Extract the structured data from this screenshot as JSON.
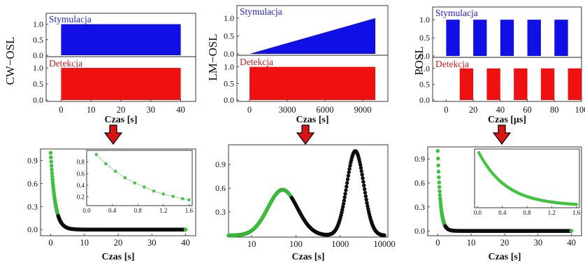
{
  "colors": {
    "stim": "#1010e6",
    "det": "#ef1010",
    "arrow": "#d81414",
    "green": "#3ec43e",
    "black": "#111111",
    "stim_label": "#2222c8",
    "det_label": "#cc2020"
  },
  "chart_data": [
    {
      "type": "bar",
      "method": "CW−OSL",
      "stim_label": "Stymulacja",
      "det_label": "Detekcja",
      "xlabel": "Czas [s]",
      "xlim": [
        -5,
        45
      ],
      "xticks": [
        "0",
        "10",
        "20",
        "30",
        "40"
      ],
      "xtick_values": [
        0,
        10,
        20,
        30,
        40
      ],
      "yticks": [
        "0.0",
        "0.5",
        "1.0"
      ],
      "ylim": [
        0,
        1.35
      ],
      "stimulation": [
        {
          "start": 0,
          "end": 40,
          "value": 1.0
        }
      ],
      "detection": [
        {
          "start": 0,
          "end": 40,
          "value": 1.0
        }
      ]
    },
    {
      "type": "area",
      "method": "LM−OSL",
      "stim_label": "Stymulacja",
      "det_label": "Detekcja",
      "xlabel": "Czas [s]",
      "xlim": [
        -1000,
        11000
      ],
      "xticks": [
        "0",
        "3000",
        "6000",
        "9000"
      ],
      "xtick_values": [
        0,
        3000,
        6000,
        9000
      ],
      "yticks": [
        "0.0",
        "0.5",
        "1.0"
      ],
      "ylim": [
        0,
        1.35
      ],
      "stimulation": [
        {
          "start": 0,
          "end": 10000,
          "value_start": 0.0,
          "value_end": 1.0
        }
      ],
      "detection": [
        {
          "start": 0,
          "end": 10000,
          "value": 1.0
        }
      ]
    },
    {
      "type": "bar",
      "method": "POSL",
      "stim_label": "Stymulacja",
      "det_label": "Detekcja",
      "xlabel": "Czas [μs]",
      "xlim": [
        -10,
        100
      ],
      "xticks": [
        "0",
        "20",
        "40",
        "60",
        "80",
        "100"
      ],
      "xtick_values": [
        0,
        20,
        40,
        60,
        80,
        100
      ],
      "yticks": [
        "0.0",
        "0.5",
        "1.0"
      ],
      "ylim": [
        0,
        1.35
      ],
      "stimulation": [
        {
          "start": 0,
          "end": 10,
          "value": 1.0
        },
        {
          "start": 20,
          "end": 30,
          "value": 1.0
        },
        {
          "start": 40,
          "end": 50,
          "value": 1.0
        },
        {
          "start": 60,
          "end": 70,
          "value": 1.0
        },
        {
          "start": 80,
          "end": 90,
          "value": 1.0
        }
      ],
      "detection": [
        {
          "start": 10,
          "end": 20,
          "value": 1.0
        },
        {
          "start": 30,
          "end": 40,
          "value": 1.0
        },
        {
          "start": 50,
          "end": 60,
          "value": 1.0
        },
        {
          "start": 70,
          "end": 80,
          "value": 1.0
        },
        {
          "start": 90,
          "end": 100,
          "value": 1.0
        }
      ]
    },
    {
      "type": "scatter",
      "method": "CW−OSL",
      "xlabel": "Czas [s]",
      "xlim": [
        -3,
        43
      ],
      "ylim": [
        -0.08,
        1.05
      ],
      "xticks": [
        "0",
        "10",
        "20",
        "30",
        "40"
      ],
      "xtick_values": [
        0,
        10,
        20,
        30,
        40
      ],
      "yticks": [
        "0.0",
        "0.3",
        "0.6",
        "0.9"
      ],
      "ytick_values": [
        0,
        0.3,
        0.6,
        0.9
      ],
      "decay_constant": 1.3,
      "x_range": [
        0,
        40
      ],
      "inset": {
        "xlim": [
          0,
          1.65
        ],
        "ylim": [
          0.05,
          1.0
        ],
        "xticks": [
          "0.0",
          "0.4",
          "0.8",
          "1.2",
          "1.6"
        ],
        "xtick_values": [
          0,
          0.4,
          0.8,
          1.2,
          1.6
        ],
        "yticks": [
          "0.2",
          "0.4",
          "0.6",
          "0.8"
        ],
        "ytick_values": [
          0.2,
          0.4,
          0.6,
          0.8
        ],
        "x": [
          0.15,
          0.3,
          0.45,
          0.6,
          0.75,
          0.9,
          1.05,
          1.2,
          1.35,
          1.5,
          1.6
        ],
        "y": [
          0.93,
          0.77,
          0.64,
          0.53,
          0.44,
          0.37,
          0.3,
          0.25,
          0.21,
          0.17,
          0.15
        ]
      }
    },
    {
      "type": "scatter",
      "method": "LM−OSL",
      "xlabel": "Czas [s]",
      "xscale": "log",
      "xlim": [
        3,
        12000
      ],
      "ylim": [
        -0.02,
        1.15
      ],
      "xticks": [
        "10",
        "100",
        "1000",
        "10000"
      ],
      "xtick_values": [
        10,
        100,
        1000,
        10000
      ],
      "yticks": [
        "0.3",
        "0.6",
        "0.9"
      ],
      "ytick_values": [
        0.3,
        0.6,
        0.9
      ],
      "peaks": [
        {
          "center": 50,
          "height": 0.58,
          "width": 0.47
        },
        {
          "center": 2200,
          "height": 1.07,
          "width": 0.27
        }
      ],
      "x_range": [
        3,
        10000
      ]
    },
    {
      "type": "scatter",
      "method": "POSL",
      "xlabel": "Czas [s]",
      "xlim": [
        -3,
        43
      ],
      "ylim": [
        -0.06,
        1.05
      ],
      "xticks": [
        "0",
        "10",
        "20",
        "30",
        "40"
      ],
      "xtick_values": [
        0,
        10,
        20,
        30,
        40
      ],
      "yticks": [
        "0.0",
        "0.3",
        "0.6",
        "0.9"
      ],
      "ytick_values": [
        0,
        0.3,
        0.6,
        0.9
      ],
      "decay_constant": 0.8,
      "x_range": [
        0,
        40
      ],
      "inset": {
        "xlim": [
          -0.05,
          1.65
        ],
        "ylim": [
          0.03,
          1.0
        ],
        "xticks": [
          "0.0",
          "0.4",
          "0.8",
          "1.2",
          "1.6"
        ],
        "xtick_values": [
          0,
          0.4,
          0.8,
          1.2,
          1.6
        ],
        "decay_constant": 0.45,
        "x_range": [
          0.02,
          1.6
        ]
      }
    }
  ]
}
